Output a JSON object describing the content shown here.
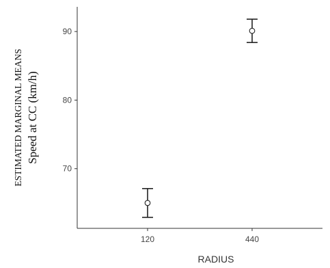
{
  "chart_data": {
    "type": "scatter",
    "x_axis": {
      "title": "RADIUS",
      "categories": [
        "120",
        "440"
      ]
    },
    "y_axis": {
      "title_line1": "ESTIMATED MARGINAL MEANS",
      "title_line2": "Speed at CC (km/h)",
      "ticks": [
        70,
        80,
        90
      ],
      "tick_labels": [
        "70",
        "80",
        "90"
      ],
      "range": [
        61.3,
        93.6
      ]
    },
    "series": [
      {
        "points": [
          {
            "x": "120",
            "y": 65.0,
            "ci_low": 62.9,
            "ci_high": 67.1
          },
          {
            "x": "440",
            "y": 90.1,
            "ci_low": 88.4,
            "ci_high": 91.8
          }
        ]
      }
    ],
    "grid": false,
    "legend": "none",
    "marker": "open-circle",
    "colors": {
      "axis": "#333333",
      "marker_stroke": "#222222",
      "marker_fill": "#ffffff",
      "text": "#444444"
    }
  }
}
